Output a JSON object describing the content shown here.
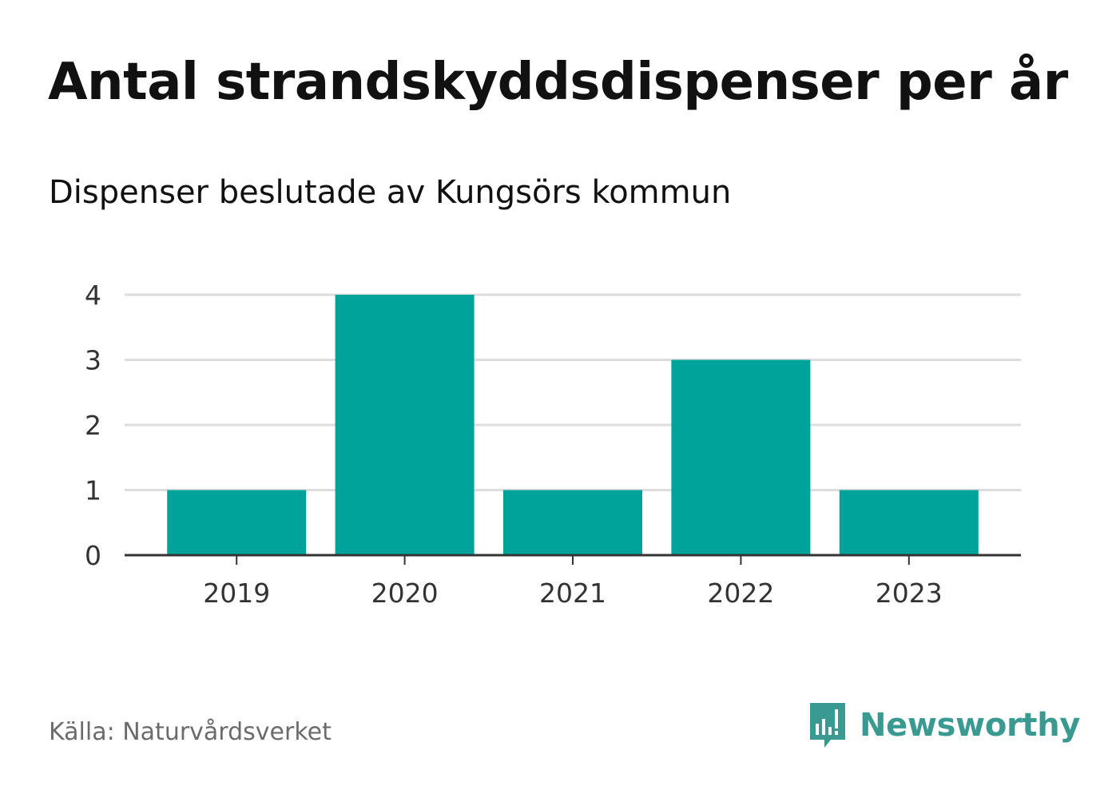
{
  "title": "Antal strandskyddsdispenser per år",
  "subtitle": "Dispenser beslutade av Kungsörs kommun",
  "source": "Källa: Naturvårdsverket",
  "brand": {
    "name": "Newsworthy",
    "icon": "newsworthy-logo-icon",
    "color": "#3a9a92"
  },
  "colors": {
    "bar": "#00a39a",
    "grid": "#dddddd",
    "axis": "#333333",
    "tick_text": "#333333"
  },
  "chart_data": {
    "type": "bar",
    "categories": [
      "2019",
      "2020",
      "2021",
      "2022",
      "2023"
    ],
    "values": [
      1,
      4,
      1,
      3,
      1
    ],
    "title": "Antal strandskyddsdispenser per år",
    "subtitle": "Dispenser beslutade av Kungsörs kommun",
    "xlabel": "",
    "ylabel": "",
    "ylim": [
      0,
      4
    ],
    "yticks": [
      0,
      1,
      2,
      3,
      4
    ],
    "grid": true
  }
}
